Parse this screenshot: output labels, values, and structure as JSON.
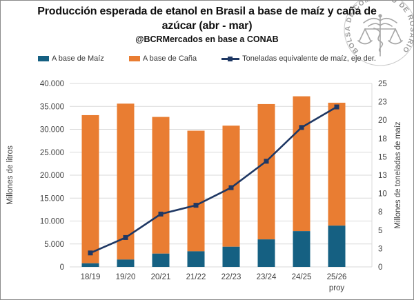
{
  "header": {
    "title": "Producción esperada de etanol en Brasil a base de maíz y caña de azúcar (abr - mar)",
    "subtitle": "@BCRMercados en base a CONAB"
  },
  "logo": {
    "ring_text": "BOLSA DE COMERCIO DE ROSARIO"
  },
  "colors": {
    "maiz": "#156082",
    "cana": "#E97D32",
    "line": "#1F3864",
    "grid": "#D9D9D9",
    "tick_text": "#404040"
  },
  "legend": {
    "items": [
      {
        "label": "A base de Maíz",
        "marker": "square",
        "color": "#156082"
      },
      {
        "label": "A base de Caña",
        "marker": "square",
        "color": "#E97D32"
      },
      {
        "label": "Toneladas equivalente de maíz, eje der.",
        "marker": "line-square",
        "color": "#1F3864"
      }
    ]
  },
  "chart_data": {
    "type": "bar",
    "subtype": "stacked-bars-with-secondary-axis-line",
    "title": "Producción esperada de etanol en Brasil a base de maíz y caña de azúcar (abr - mar)",
    "subtitle": "@BCRMercados en base a CONAB",
    "categories": [
      "18/19",
      "19/20",
      "20/21",
      "21/22",
      "22/23",
      "23/24",
      "24/25",
      "25/26"
    ],
    "last_category_note": "proy",
    "series": [
      {
        "name": "A base de Maíz",
        "type": "bar-stack-bottom",
        "axis": "left",
        "color": "#156082",
        "values": [
          790,
          1600,
          2900,
          3400,
          4400,
          6000,
          7800,
          9000
        ]
      },
      {
        "name": "A base de Caña",
        "type": "bar-stack-top",
        "axis": "left",
        "color": "#E97D32",
        "values": [
          32300,
          34000,
          29800,
          26300,
          26400,
          29500,
          29400,
          26800
        ]
      },
      {
        "name": "Toneladas equivalente de maíz, eje der.",
        "type": "line",
        "axis": "right",
        "color": "#1F3864",
        "values": [
          1.9,
          4.0,
          7.2,
          8.4,
          10.8,
          14.4,
          19.0,
          21.8
        ]
      }
    ],
    "stacked_totals": [
      33090,
      35600,
      32700,
      29700,
      30800,
      35500,
      37200,
      35800
    ],
    "left_axis": {
      "label": "Millones de litros",
      "min": 0,
      "max": 40000,
      "step": 5000,
      "tick_labels": [
        "0",
        "5.000",
        "10.000",
        "15.000",
        "20.000",
        "25.000",
        "30.000",
        "35.000",
        "40.000"
      ]
    },
    "right_axis": {
      "label": "Millones de toneladas de maíz",
      "min": 0,
      "max": 25,
      "step": 2.5,
      "tick_labels": [
        "0",
        "3",
        "5",
        "8",
        "10",
        "13",
        "15",
        "18",
        "20",
        "23",
        "25"
      ]
    },
    "grid": true,
    "legend_position": "top"
  }
}
